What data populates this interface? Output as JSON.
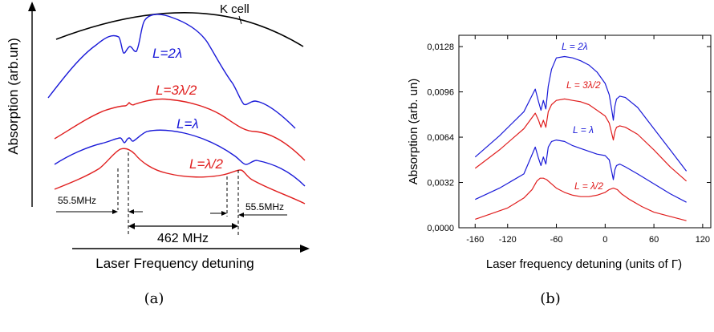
{
  "panel_a": {
    "caption": "(a)",
    "ylabel": "Absorption (arb.un)",
    "xlabel": "Laser Frequency detuning",
    "labels": {
      "k_cell": "K cell",
      "l_2lambda": "L=2λ",
      "l_3lambda2": "L=3λ/2",
      "l_lambda": "L=λ",
      "l_lambda2": "L=λ/2"
    },
    "annotations": {
      "left_spacing": "55.5MHz",
      "right_spacing": "55.5MHz",
      "span": "462 MHz"
    },
    "colors": {
      "black": "#000000",
      "blue": "#1a1ad8",
      "red": "#e01e1e"
    }
  },
  "panel_b": {
    "caption": "(b)",
    "labels": {
      "l_2lambda": "L = 2λ",
      "l_3lambda2": "L = 3λ/2",
      "l_lambda": "L = λ",
      "l_lambda2": "L = λ/2"
    }
  },
  "chart_data": [
    {
      "type": "line",
      "panel": "a",
      "xlabel": "Laser Frequency detuning",
      "ylabel": "Absorption (arb.un)",
      "ticks": "none",
      "series": [
        {
          "name": "K cell",
          "color": "#000000"
        },
        {
          "name": "L=2λ",
          "color": "#1a1ad8"
        },
        {
          "name": "L=3λ/2",
          "color": "#e01e1e"
        },
        {
          "name": "L=λ",
          "color": "#1a1ad8"
        },
        {
          "name": "L=λ/2",
          "color": "#e01e1e"
        }
      ],
      "annotations": [
        "55.5MHz",
        "55.5MHz",
        "462 MHz"
      ]
    },
    {
      "type": "line",
      "panel": "b",
      "xlabel": "Laser frequency detuning (units of Γ)",
      "ylabel": "Absorption (arb. un)",
      "xlim": [
        -180,
        130
      ],
      "ylim": [
        0,
        0.0136
      ],
      "xticks": [
        -160,
        -120,
        -60,
        0,
        60,
        120
      ],
      "xtick_labels": [
        "-160",
        "-120",
        "-60",
        "0",
        "60",
        "120"
      ],
      "yticks": [
        0,
        0.0032,
        0.0064,
        0.0096,
        0.0128
      ],
      "ytick_labels": [
        "0,0000",
        "0,0032",
        "0,0064",
        "0,0096",
        "0,0128"
      ],
      "series": [
        {
          "name": "L = 2λ",
          "color": "#1a1ad8",
          "x": [
            -160,
            -130,
            -100,
            -86,
            -82,
            -79,
            -76,
            -73,
            -70,
            -66,
            -60,
            -50,
            -40,
            -30,
            -20,
            -10,
            0,
            5,
            8,
            10,
            12,
            14,
            18,
            25,
            40,
            60,
            80,
            100
          ],
          "y": [
            0.005,
            0.0065,
            0.0082,
            0.0098,
            0.0089,
            0.0083,
            0.009,
            0.0084,
            0.01,
            0.0112,
            0.012,
            0.0121,
            0.012,
            0.0118,
            0.0115,
            0.011,
            0.0102,
            0.0094,
            0.0084,
            0.0076,
            0.0086,
            0.0091,
            0.0093,
            0.0092,
            0.0085,
            0.007,
            0.0055,
            0.004
          ]
        },
        {
          "name": "L = 3λ/2",
          "color": "#e01e1e",
          "x": [
            -160,
            -130,
            -100,
            -86,
            -82,
            -79,
            -76,
            -73,
            -70,
            -66,
            -60,
            -50,
            -40,
            -30,
            -20,
            -10,
            0,
            5,
            8,
            10,
            12,
            14,
            18,
            25,
            40,
            60,
            80,
            100
          ],
          "y": [
            0.0042,
            0.0055,
            0.007,
            0.0081,
            0.0076,
            0.0071,
            0.0076,
            0.0071,
            0.0082,
            0.0087,
            0.009,
            0.0091,
            0.009,
            0.0089,
            0.0087,
            0.0083,
            0.0079,
            0.0074,
            0.0067,
            0.0062,
            0.0068,
            0.0071,
            0.0072,
            0.0071,
            0.0066,
            0.0055,
            0.0043,
            0.0033
          ]
        },
        {
          "name": "L = λ",
          "color": "#1a1ad8",
          "x": [
            -160,
            -130,
            -100,
            -86,
            -82,
            -79,
            -76,
            -73,
            -70,
            -66,
            -60,
            -50,
            -40,
            -30,
            -20,
            -10,
            0,
            5,
            8,
            10,
            12,
            14,
            18,
            25,
            40,
            60,
            80,
            100
          ],
          "y": [
            0.002,
            0.0028,
            0.0038,
            0.0057,
            0.0049,
            0.0044,
            0.005,
            0.0045,
            0.0057,
            0.0061,
            0.0062,
            0.0061,
            0.0058,
            0.0056,
            0.0054,
            0.0052,
            0.0051,
            0.0048,
            0.004,
            0.0034,
            0.0041,
            0.0044,
            0.0045,
            0.0043,
            0.0038,
            0.0031,
            0.0024,
            0.0018
          ]
        },
        {
          "name": "L = λ/2",
          "color": "#e01e1e",
          "x": [
            -160,
            -140,
            -120,
            -100,
            -90,
            -84,
            -80,
            -76,
            -72,
            -66,
            -60,
            -50,
            -40,
            -30,
            -20,
            -10,
            0,
            5,
            10,
            15,
            20,
            30,
            45,
            60,
            80,
            100
          ],
          "y": [
            0.0006,
            0.001,
            0.0014,
            0.0021,
            0.0027,
            0.0033,
            0.0035,
            0.0035,
            0.0034,
            0.0031,
            0.0028,
            0.0025,
            0.0023,
            0.0022,
            0.0022,
            0.0023,
            0.0025,
            0.0027,
            0.0028,
            0.0027,
            0.0024,
            0.002,
            0.0015,
            0.0011,
            0.0008,
            0.0005
          ]
        }
      ]
    }
  ]
}
